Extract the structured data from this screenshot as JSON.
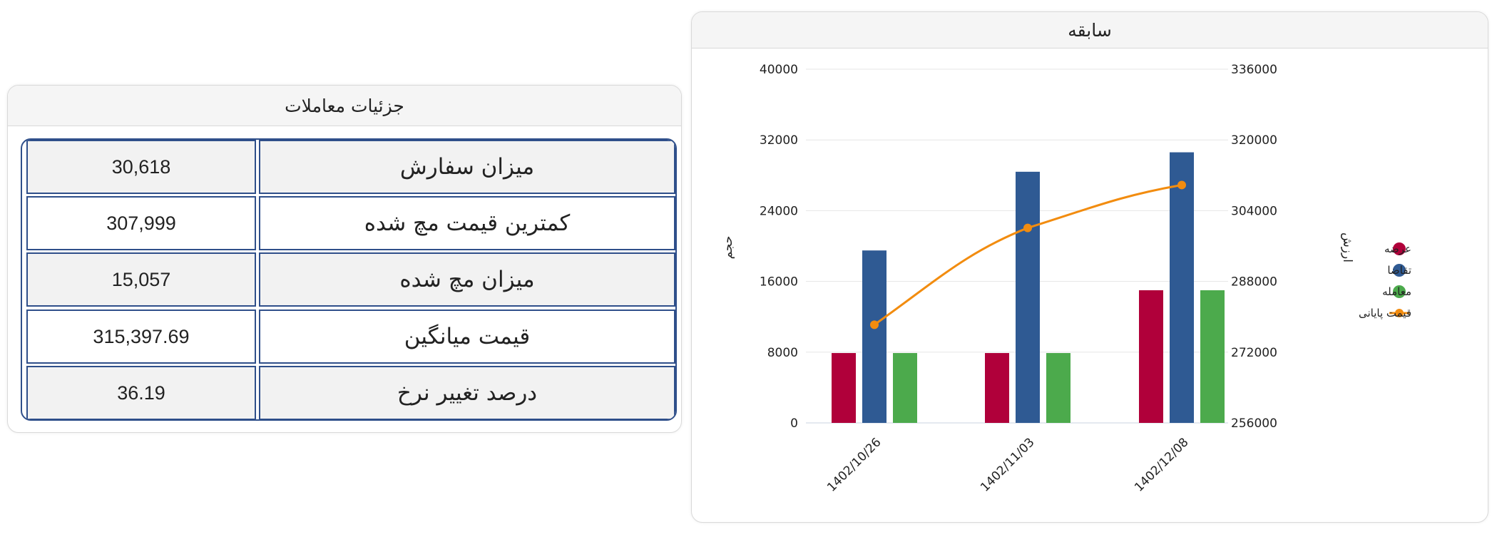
{
  "details": {
    "title": "جزئیات معاملات",
    "rows": [
      {
        "label": "میزان سفارش",
        "value": "30,618"
      },
      {
        "label": "کمترین قیمت مچ شده",
        "value": "307,999"
      },
      {
        "label": "میزان مچ شده",
        "value": "15,057"
      },
      {
        "label": "قیمت میانگین",
        "value": "315,397.69"
      },
      {
        "label": "درصد تغییر نرخ",
        "value": "36.19"
      }
    ]
  },
  "chart_panel": {
    "title": "سابقه"
  },
  "chart_data": {
    "type": "bar",
    "categories": [
      "1402/10/26",
      "1402/11/03",
      "1402/12/08"
    ],
    "series": [
      {
        "name": "عرضه",
        "type": "bar",
        "axis": "left",
        "color": "#b0003a",
        "values": [
          7900,
          7900,
          15000
        ]
      },
      {
        "name": "تقاضا",
        "type": "bar",
        "axis": "left",
        "color": "#2f5a93",
        "values": [
          19500,
          28400,
          30600
        ]
      },
      {
        "name": "معامله",
        "type": "bar",
        "axis": "left",
        "color": "#4caa4c",
        "values": [
          7900,
          7900,
          15000
        ]
      },
      {
        "name": "قیمت پایانی",
        "type": "line",
        "axis": "right",
        "color": "#f28c0f",
        "values": [
          278200,
          300100,
          309800
        ]
      }
    ],
    "ylabel_left": "حجم",
    "ylabel_right": "ارزش",
    "ylim_left": [
      0,
      40000
    ],
    "ylim_right": [
      256000,
      336000
    ],
    "yticks_left": [
      "0",
      "8000",
      "16000",
      "24000",
      "32000",
      "40000"
    ],
    "yticks_right": [
      "256000",
      "272000",
      "288000",
      "304000",
      "320000",
      "336000"
    ],
    "grid": true,
    "legend_position": "right"
  }
}
